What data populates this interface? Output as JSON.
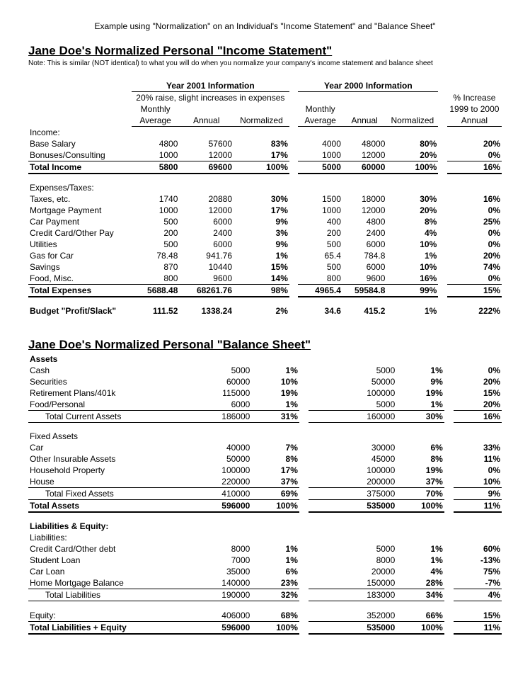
{
  "caption": "Example using \"Normalization\" on an Individual's \"Income Statement\" and \"Balance Sheet\"",
  "title1": "Jane Doe's Normalized Personal \"Income Statement\"",
  "note": "Note: This is similar (NOT identical) to what you will do when you normalize your company's income statement and balance sheet",
  "hdr": {
    "y2001": "Year 2001 Information",
    "y2000": "Year 2000 Information",
    "raise": "20% raise, slight increases in expenses",
    "pctInc": "% Increase",
    "range": "1999 to 2000",
    "monthly": "Monthly",
    "average": "Average",
    "annual": "Annual",
    "normalized": "Normalized"
  },
  "incomeHdr": "Income:",
  "rowsIncome": [
    {
      "l": "Base Salary",
      "a": "4800",
      "b": "57600",
      "c": "83%",
      "d": "4000",
      "e": "48000",
      "f": "80%",
      "g": "20%"
    },
    {
      "l": "Bonuses/Consulting",
      "a": "1000",
      "b": "12000",
      "c": "17%",
      "d": "1000",
      "e": "12000",
      "f": "20%",
      "g": "0%"
    }
  ],
  "totalIncome": {
    "l": "Total Income",
    "a": "5800",
    "b": "69600",
    "c": "100%",
    "d": "5000",
    "e": "60000",
    "f": "100%",
    "g": "16%"
  },
  "expHdr": "Expenses/Taxes:",
  "rowsExp": [
    {
      "l": "Taxes, etc.",
      "a": "1740",
      "b": "20880",
      "c": "30%",
      "d": "1500",
      "e": "18000",
      "f": "30%",
      "g": "16%"
    },
    {
      "l": "Mortgage Payment",
      "a": "1000",
      "b": "12000",
      "c": "17%",
      "d": "1000",
      "e": "12000",
      "f": "20%",
      "g": "0%"
    },
    {
      "l": "Car Payment",
      "a": "500",
      "b": "6000",
      "c": "9%",
      "d": "400",
      "e": "4800",
      "f": "8%",
      "g": "25%"
    },
    {
      "l": "Credit Card/Other Pay",
      "a": "200",
      "b": "2400",
      "c": "3%",
      "d": "200",
      "e": "2400",
      "f": "4%",
      "g": "0%"
    },
    {
      "l": "Utilities",
      "a": "500",
      "b": "6000",
      "c": "9%",
      "d": "500",
      "e": "6000",
      "f": "10%",
      "g": "0%"
    },
    {
      "l": "Gas for Car",
      "a": "78.48",
      "b": "941.76",
      "c": "1%",
      "d": "65.4",
      "e": "784.8",
      "f": "1%",
      "g": "20%"
    },
    {
      "l": "Savings",
      "a": "870",
      "b": "10440",
      "c": "15%",
      "d": "500",
      "e": "6000",
      "f": "10%",
      "g": "74%"
    },
    {
      "l": "Food, Misc.",
      "a": "800",
      "b": "9600",
      "c": "14%",
      "d": "800",
      "e": "9600",
      "f": "16%",
      "g": "0%"
    }
  ],
  "totalExp": {
    "l": "Total Expenses",
    "a": "5688.48",
    "b": "68261.76",
    "c": "98%",
    "d": "4965.4",
    "e": "59584.8",
    "f": "99%",
    "g": "15%"
  },
  "budget": {
    "l": "Budget \"Profit/Slack\"",
    "a": "111.52",
    "b": "1338.24",
    "c": "2%",
    "d": "34.6",
    "e": "415.2",
    "f": "1%",
    "g": "222%"
  },
  "title2": "Jane Doe's Normalized Personal \"Balance Sheet\"",
  "assetsHdr": "Assets",
  "rowsCur": [
    {
      "l": "Cash",
      "b": "5000",
      "c": "1%",
      "e": "5000",
      "f": "1%",
      "g": "0%"
    },
    {
      "l": "Securities",
      "b": "60000",
      "c": "10%",
      "e": "50000",
      "f": "9%",
      "g": "20%"
    },
    {
      "l": "Retirement Plans/401k",
      "b": "115000",
      "c": "19%",
      "e": "100000",
      "f": "19%",
      "g": "15%"
    },
    {
      "l": "Food/Personal",
      "b": "6000",
      "c": "1%",
      "e": "5000",
      "f": "1%",
      "g": "20%"
    }
  ],
  "totCur": {
    "l": "Total Current Assets",
    "b": "186000",
    "c": "31%",
    "e": "160000",
    "f": "30%",
    "g": "16%"
  },
  "fixedHdr": "Fixed Assets",
  "rowsFixed": [
    {
      "l": "Car",
      "b": "40000",
      "c": "7%",
      "e": "30000",
      "f": "6%",
      "g": "33%"
    },
    {
      "l": "Other Insurable Assets",
      "b": "50000",
      "c": "8%",
      "e": "45000",
      "f": "8%",
      "g": "11%"
    },
    {
      "l": "Household Property",
      "b": "100000",
      "c": "17%",
      "e": "100000",
      "f": "19%",
      "g": "0%"
    },
    {
      "l": "House",
      "b": "220000",
      "c": "37%",
      "e": "200000",
      "f": "37%",
      "g": "10%"
    }
  ],
  "totFixed": {
    "l": "Total Fixed Assets",
    "b": "410000",
    "c": "69%",
    "e": "375000",
    "f": "70%",
    "g": "9%"
  },
  "totAssets": {
    "l": "Total Assets",
    "b": "596000",
    "c": "100%",
    "e": "535000",
    "f": "100%",
    "g": "11%"
  },
  "leHdr": "Liabilities & Equity:",
  "liabHdr": "Liabilities:",
  "rowsLiab": [
    {
      "l": "Credit Card/Other debt",
      "b": "8000",
      "c": "1%",
      "e": "5000",
      "f": "1%",
      "g": "60%"
    },
    {
      "l": "Student Loan",
      "b": "7000",
      "c": "1%",
      "e": "8000",
      "f": "1%",
      "g": "-13%"
    },
    {
      "l": "Car Loan",
      "b": "35000",
      "c": "6%",
      "e": "20000",
      "f": "4%",
      "g": "75%"
    },
    {
      "l": "Home Mortgage Balance",
      "b": "140000",
      "c": "23%",
      "e": "150000",
      "f": "28%",
      "g": "-7%"
    }
  ],
  "totLiab": {
    "l": "Total Liabilities",
    "b": "190000",
    "c": "32%",
    "e": "183000",
    "f": "34%",
    "g": "4%"
  },
  "equity": {
    "l": "Equity:",
    "b": "406000",
    "c": "68%",
    "e": "352000",
    "f": "66%",
    "g": "15%"
  },
  "totLE": {
    "l": "Total Liabilities + Equity",
    "b": "596000",
    "c": "100%",
    "e": "535000",
    "f": "100%",
    "g": "11%"
  }
}
